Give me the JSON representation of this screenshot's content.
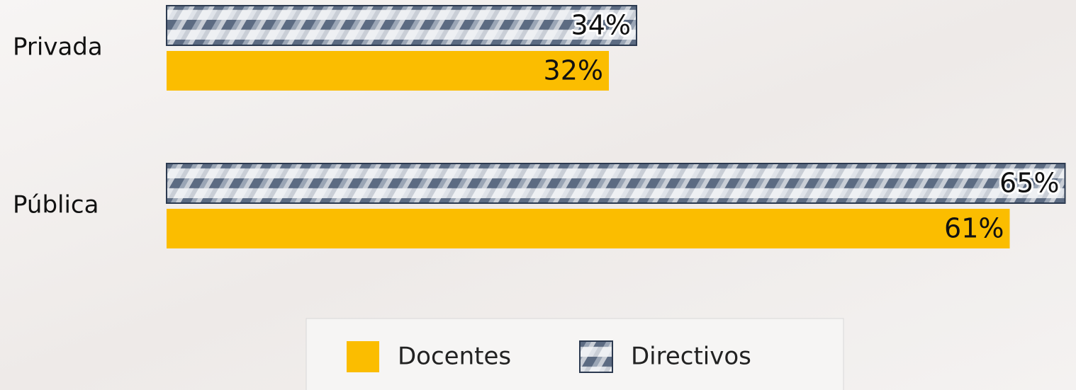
{
  "chart_data": {
    "type": "bar",
    "orientation": "horizontal",
    "categories": [
      "Privada",
      "Pública"
    ],
    "series": [
      {
        "name": "Docentes",
        "color": "#fbbd00",
        "values": [
          32,
          61
        ],
        "value_labels": [
          "32%",
          "61%"
        ]
      },
      {
        "name": "Directivos",
        "color": "#4a5a72",
        "values": [
          34,
          65
        ],
        "value_labels": [
          "34%",
          "65%"
        ]
      }
    ]
  }
}
